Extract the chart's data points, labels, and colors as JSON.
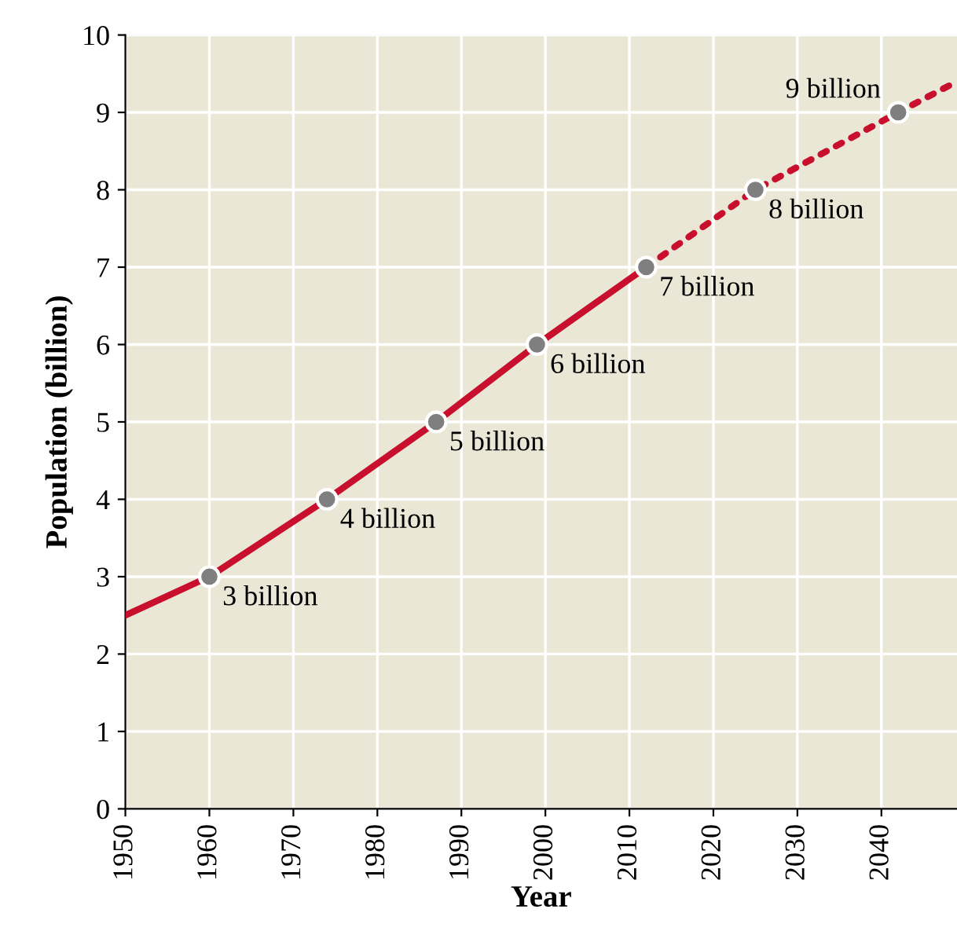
{
  "chart_data": {
    "type": "line",
    "xlabel": "Year",
    "ylabel": "Population (billion)",
    "xlim": [
      1950,
      2049
    ],
    "xticks": [
      1950,
      1960,
      1970,
      1980,
      1990,
      2000,
      2010,
      2020,
      2030,
      2040
    ],
    "ylim": [
      0,
      10
    ],
    "yticks": [
      0,
      1,
      2,
      3,
      4,
      5,
      6,
      7,
      8,
      9,
      10
    ],
    "grid": true,
    "series": [
      {
        "color": "#c8102e",
        "line_style": "solid",
        "marker": "none",
        "x": [
          1950,
          1960,
          1974,
          1987,
          1999,
          2012
        ],
        "values": [
          2.5,
          3,
          4,
          5,
          6,
          7
        ]
      },
      {
        "color": "#c8102e",
        "line_style": "dotted",
        "marker": "none",
        "x": [
          2012,
          2025,
          2042,
          2049
        ],
        "values": [
          7,
          8,
          9,
          9.4
        ]
      },
      {
        "type": "scatter",
        "color": "#7f7f7f",
        "marker": "circle",
        "x": [
          1960,
          1974,
          1987,
          1999,
          2012,
          2025,
          2042
        ],
        "values": [
          3,
          4,
          5,
          6,
          7,
          8,
          9
        ]
      }
    ],
    "annotations": [
      {
        "text": "3 billion",
        "x": 1960,
        "y": 3
      },
      {
        "text": "4 billion",
        "x": 1974,
        "y": 4
      },
      {
        "text": "5 billion",
        "x": 1987,
        "y": 5
      },
      {
        "text": "6 billion",
        "x": 1999,
        "y": 6
      },
      {
        "text": "7 billion",
        "x": 2012,
        "y": 7
      },
      {
        "text": "8 billion",
        "x": 2025,
        "y": 8
      },
      {
        "text": "9 billion",
        "x": 2042,
        "y": 9
      }
    ]
  }
}
